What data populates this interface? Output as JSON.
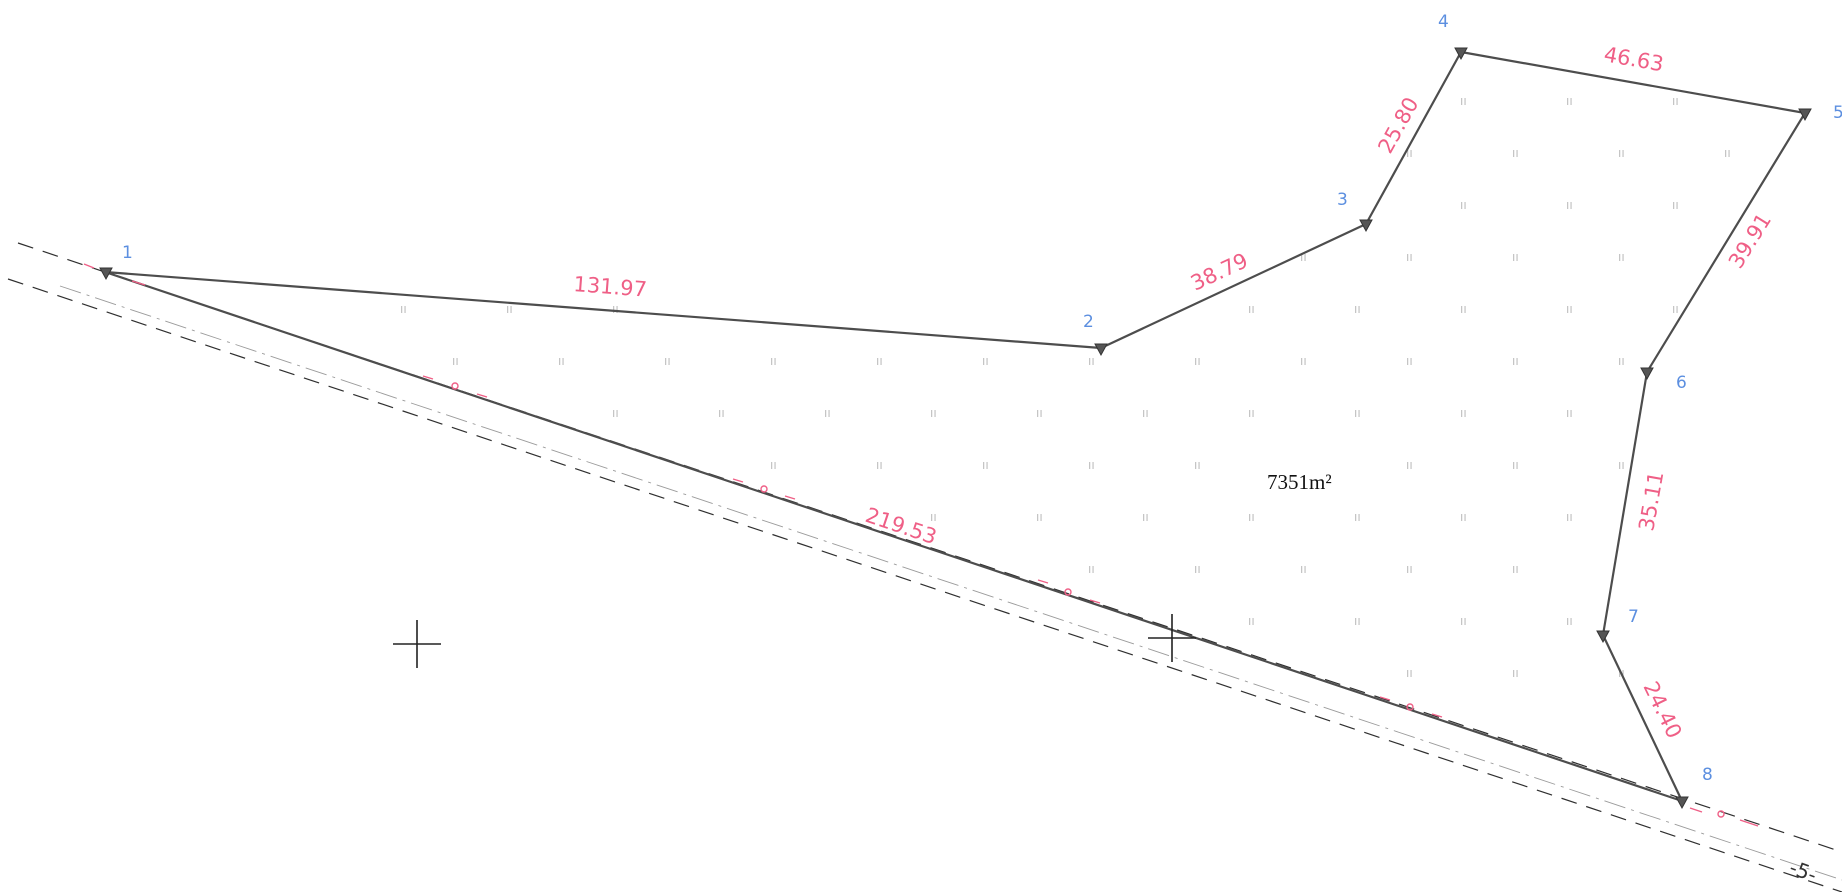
{
  "plot": {
    "area_label": "7351m²",
    "colors": {
      "boundary": "#4d4d4d",
      "dimension": "#ef5f86",
      "vertex_label": "#5c8fe0",
      "hatch": "#bdbdbd",
      "reference_line": "#2f2f2f"
    },
    "vertices": [
      {
        "id": "v1",
        "label": "1"
      },
      {
        "id": "v2",
        "label": "2"
      },
      {
        "id": "v3",
        "label": "3"
      },
      {
        "id": "v4",
        "label": "4"
      },
      {
        "id": "v5",
        "label": "5"
      },
      {
        "id": "v6",
        "label": "6"
      },
      {
        "id": "v7",
        "label": "7"
      },
      {
        "id": "v8",
        "label": "8"
      }
    ],
    "edges": [
      {
        "id": "e1-2",
        "length": "131.97"
      },
      {
        "id": "e2-3",
        "length": "38.79"
      },
      {
        "id": "e3-4",
        "length": "25.80"
      },
      {
        "id": "e4-5",
        "length": "46.63"
      },
      {
        "id": "e5-6",
        "length": "39.91"
      },
      {
        "id": "e6-7",
        "length": "35.11"
      },
      {
        "id": "e7-8",
        "length": "24.40"
      },
      {
        "id": "e8-1",
        "length": "219.53"
      }
    ],
    "boundary_marker": "-5-",
    "hatch_symbol": "ıı"
  }
}
